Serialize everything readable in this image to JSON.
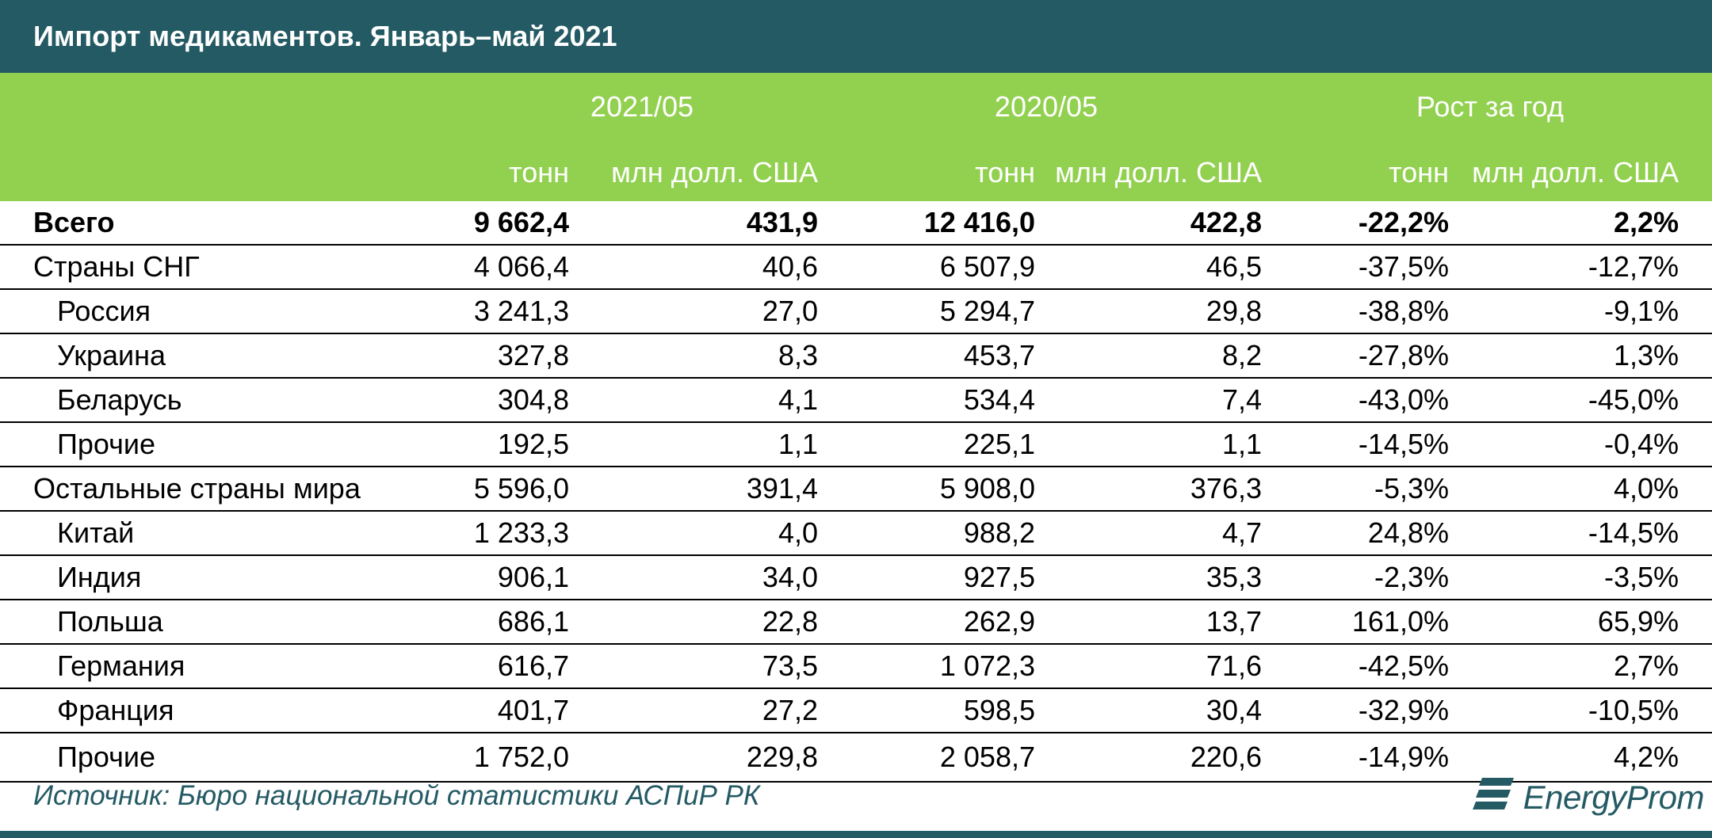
{
  "title": "Импорт медикаментов. Январь–май 2021",
  "groups": [
    "2021/05",
    "2020/05",
    "Рост за год"
  ],
  "units": [
    "тонн",
    "млн долл. США",
    "тонн",
    "млн долл. США",
    "тонн",
    "млн долл. США"
  ],
  "rows": [
    {
      "name": "Всего",
      "values": [
        "9 662,4",
        "431,9",
        "12 416,0",
        "422,8",
        "-22,2%",
        "2,2%"
      ]
    },
    {
      "name": "Страны СНГ",
      "values": [
        "4 066,4",
        "40,6",
        "6 507,9",
        "46,5",
        "-37,5%",
        "-12,7%"
      ]
    },
    {
      "name": "Россия",
      "values": [
        "3 241,3",
        "27,0",
        "5 294,7",
        "29,8",
        "-38,8%",
        "-9,1%"
      ]
    },
    {
      "name": "Украина",
      "values": [
        "327,8",
        "8,3",
        "453,7",
        "8,2",
        "-27,8%",
        "1,3%"
      ]
    },
    {
      "name": "Беларусь",
      "values": [
        "304,8",
        "4,1",
        "534,4",
        "7,4",
        "-43,0%",
        "-45,0%"
      ]
    },
    {
      "name": "Прочие",
      "values": [
        "192,5",
        "1,1",
        "225,1",
        "1,1",
        "-14,5%",
        "-0,4%"
      ]
    },
    {
      "name": "Остальные страны мира",
      "values": [
        "5 596,0",
        "391,4",
        "5 908,0",
        "376,3",
        "-5,3%",
        "4,0%"
      ]
    },
    {
      "name": "Китай",
      "values": [
        "1 233,3",
        "4,0",
        "988,2",
        "4,7",
        "24,8%",
        "-14,5%"
      ]
    },
    {
      "name": "Индия",
      "values": [
        "906,1",
        "34,0",
        "927,5",
        "35,3",
        "-2,3%",
        "-3,5%"
      ]
    },
    {
      "name": "Польша",
      "values": [
        "686,1",
        "22,8",
        "262,9",
        "13,7",
        "161,0%",
        "65,9%"
      ]
    },
    {
      "name": "Германия",
      "values": [
        "616,7",
        "73,5",
        "1 072,3",
        "71,6",
        "-42,5%",
        "2,7%"
      ]
    },
    {
      "name": "Франция",
      "values": [
        "401,7",
        "27,2",
        "598,5",
        "30,4",
        "-32,9%",
        "-10,5%"
      ]
    },
    {
      "name": "Прочие",
      "values": [
        "1 752,0",
        "229,8",
        "2 058,7",
        "220,6",
        "-14,9%",
        "4,2%"
      ]
    }
  ],
  "source": "Источник: Бюро национальной статистики АСПиР РК",
  "logo": {
    "text": "EnergyProm",
    "icon": "energyprom-logo-icon"
  },
  "colors": {
    "title_bg": "#245a64",
    "header_bg": "#92d050",
    "header_text": "#ffffff",
    "source_text": "#245a64"
  }
}
